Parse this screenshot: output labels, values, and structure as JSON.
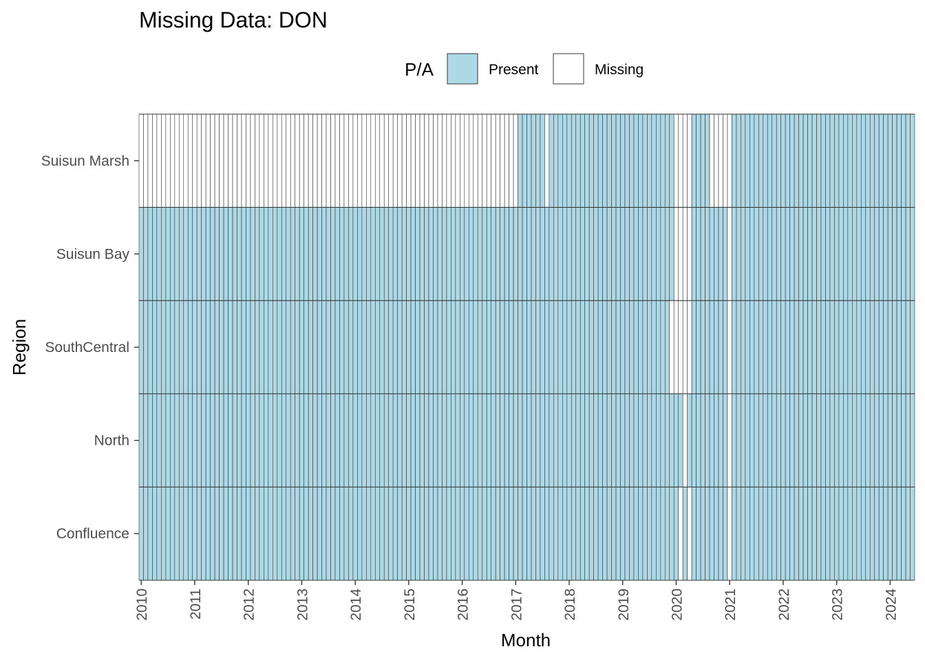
{
  "chart_data": {
    "type": "heatmap",
    "title": "Missing Data: DON",
    "xlabel": "Month",
    "ylabel": "Region",
    "legend": {
      "title": "P/A",
      "position": "top",
      "entries": [
        {
          "label": "Present",
          "color": "#add8e6"
        },
        {
          "label": "Missing",
          "color": "#ffffff"
        }
      ]
    },
    "x_start": "2010-01",
    "x_end": "2024-06",
    "x_ticks": [
      "2010",
      "2011",
      "2012",
      "2013",
      "2014",
      "2015",
      "2016",
      "2017",
      "2018",
      "2019",
      "2020",
      "2021",
      "2022",
      "2023",
      "2024"
    ],
    "regions": [
      "Suisun Marsh",
      "Suisun Bay",
      "SouthCentral",
      "North",
      "Confluence"
    ],
    "missing_ranges": {
      "Suisun Marsh": [
        [
          "2010-01",
          "2017-01"
        ],
        [
          "2017-08",
          "2017-08"
        ],
        [
          "2020-01",
          "2020-04"
        ],
        [
          "2020-09",
          "2021-01"
        ]
      ],
      "Suisun Bay": [
        [
          "2020-01",
          "2020-04"
        ],
        [
          "2021-01",
          "2021-01"
        ]
      ],
      "SouthCentral": [
        [
          "2019-12",
          "2020-04"
        ],
        [
          "2021-01",
          "2021-01"
        ]
      ],
      "North": [
        [
          "2020-03",
          "2020-03"
        ],
        [
          "2021-01",
          "2021-01"
        ]
      ],
      "Confluence": [
        [
          "2020-02",
          "2020-02"
        ],
        [
          "2020-04",
          "2020-04"
        ],
        [
          "2021-01",
          "2021-01"
        ]
      ]
    },
    "grid": false
  }
}
